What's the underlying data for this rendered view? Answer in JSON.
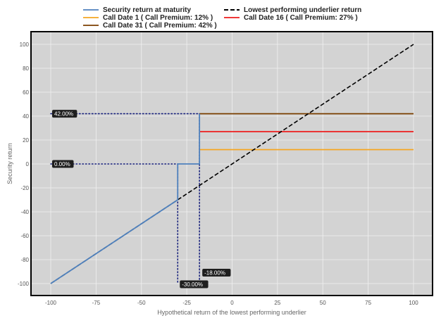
{
  "chart_data": {
    "type": "line",
    "title": "",
    "xlabel": "Hypothetical return of the lowest performing underlier",
    "ylabel": "Security return",
    "xlim": [
      -110,
      110
    ],
    "ylim": [
      -110,
      110
    ],
    "x_ticks": [
      -100,
      -75,
      -50,
      -25,
      0,
      25,
      50,
      75,
      100
    ],
    "y_ticks": [
      100,
      80,
      60,
      40,
      20,
      0,
      -20,
      -40,
      -60,
      -80,
      -100
    ],
    "x_tick_labels": [
      "-100",
      "-75",
      "-50",
      "-25",
      "0",
      "25",
      "50",
      "75",
      "100"
    ],
    "y_tick_labels": [
      "100",
      "80",
      "60",
      "40",
      "20",
      "0",
      "-20",
      "-40",
      "-60",
      "-80",
      "-100"
    ],
    "grid": true,
    "legend_position": "top",
    "series": [
      {
        "name": "Security return at maturity",
        "color": "#4f81bd",
        "style": "solid",
        "points": [
          [
            -100,
            -100
          ],
          [
            -30,
            -30
          ],
          [
            -30,
            0
          ],
          [
            -18,
            0
          ],
          [
            -18,
            42
          ]
        ]
      },
      {
        "name": "Lowest performing underlier return",
        "color": "#000000",
        "style": "dashed",
        "points": [
          [
            -100,
            -100
          ],
          [
            100,
            100
          ]
        ]
      },
      {
        "name": "Call Date 1 ( Call Premium: 12% )",
        "color": "#f5a623",
        "style": "solid",
        "points": [
          [
            -18,
            12
          ],
          [
            100,
            12
          ]
        ]
      },
      {
        "name": "Call Date 16 ( Call Premium: 27% )",
        "color": "#ee1c1c",
        "style": "solid",
        "points": [
          [
            -18,
            27
          ],
          [
            100,
            27
          ]
        ]
      },
      {
        "name": "Call Date 31 ( Call Premium: 42% )",
        "color": "#7b3f00",
        "style": "solid",
        "points": [
          [
            -18,
            42
          ],
          [
            100,
            42
          ]
        ]
      }
    ],
    "reference_lines": [
      {
        "points": [
          [
            -100,
            42
          ],
          [
            -18,
            42
          ]
        ],
        "color": "#1a237e",
        "style": "dotted"
      },
      {
        "points": [
          [
            -100,
            0
          ],
          [
            -30,
            0
          ]
        ],
        "color": "#1a237e",
        "style": "dotted"
      },
      {
        "points": [
          [
            -30,
            0
          ],
          [
            -30,
            -100
          ]
        ],
        "color": "#1a237e",
        "style": "dotted"
      },
      {
        "points": [
          [
            -18,
            42
          ],
          [
            -18,
            -100
          ]
        ],
        "color": "#1a237e",
        "style": "dotted"
      }
    ],
    "annotations": [
      {
        "text": "42.00%",
        "x": -100,
        "y": 42,
        "anchor": "y-axis"
      },
      {
        "text": "0.00%",
        "x": -100,
        "y": 0,
        "anchor": "y-axis"
      },
      {
        "text": "-30.00%",
        "x": -30,
        "y": -100,
        "anchor": "x-bottom"
      },
      {
        "text": "-18.00%",
        "x": -18,
        "y": -100,
        "anchor": "x-bottom-raised"
      }
    ],
    "colors": {
      "plot_background": "#d3d3d3",
      "frame": "#000000",
      "grid": "#f0f0f0",
      "callout_background": "#1f1f1f"
    }
  }
}
